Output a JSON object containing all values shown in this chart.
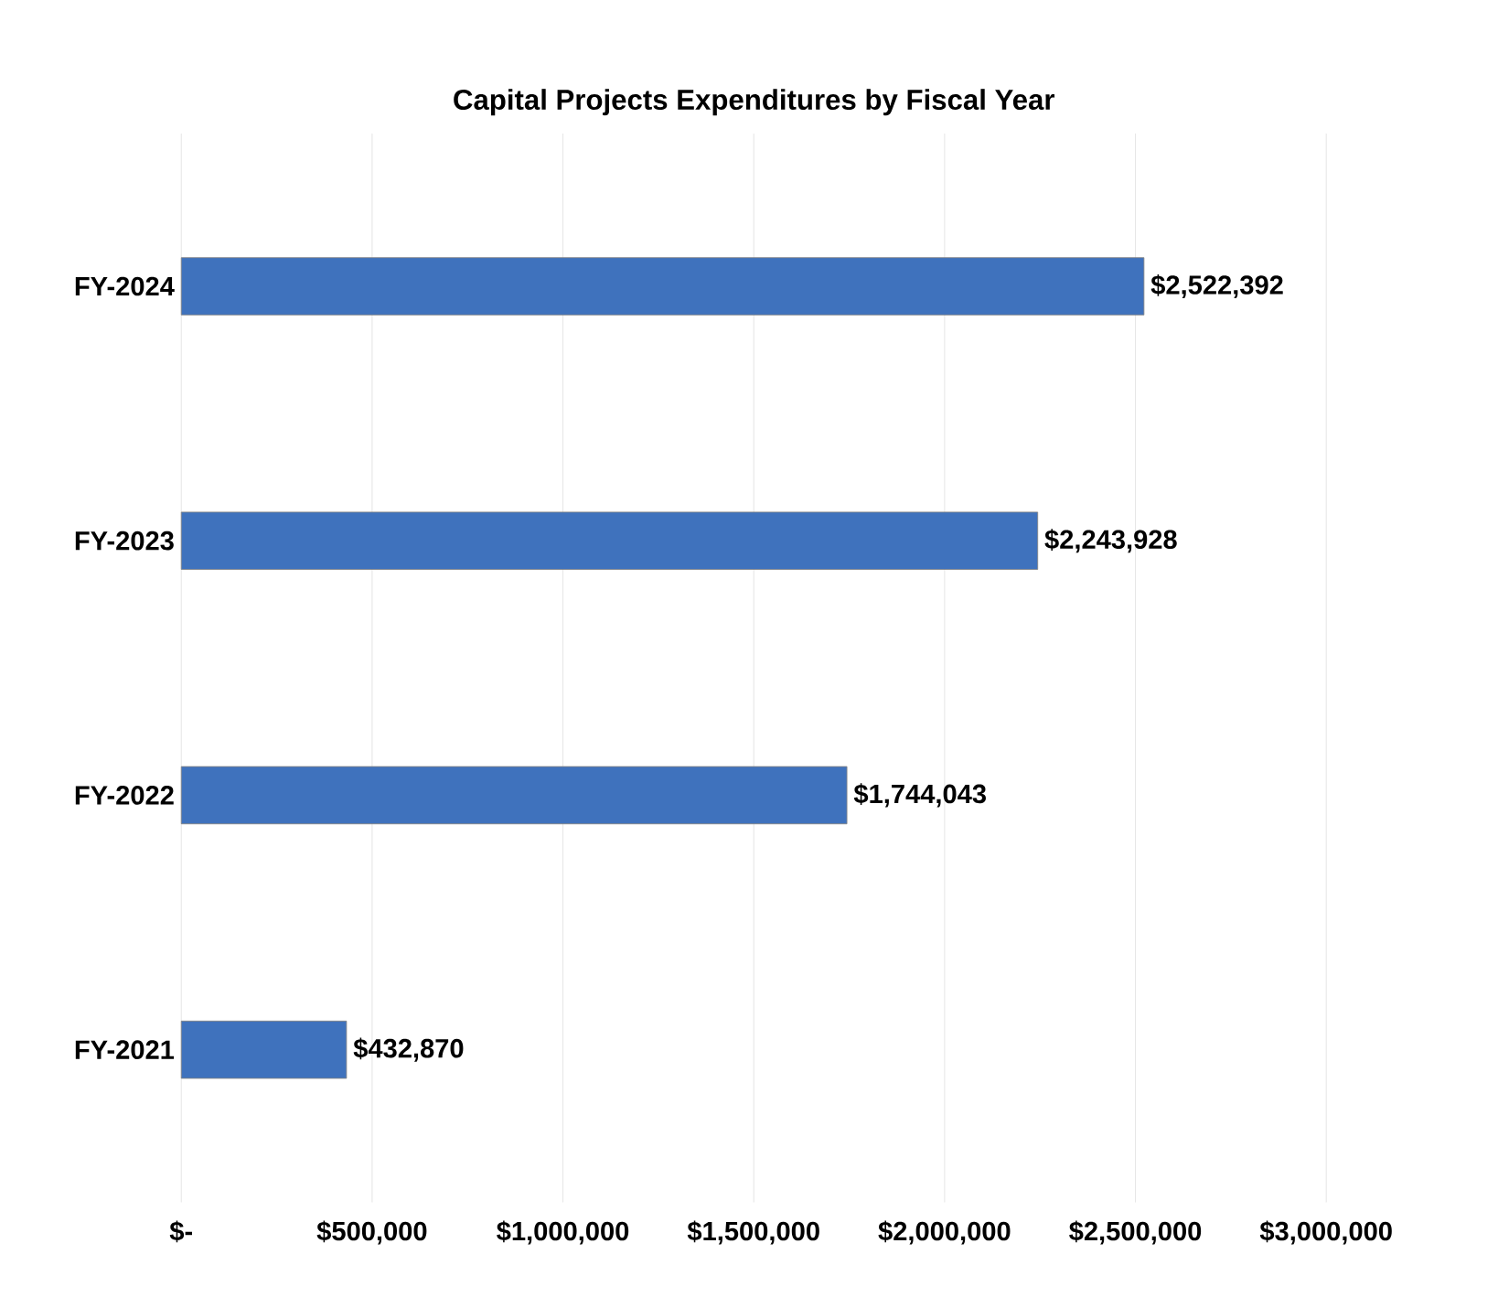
{
  "chart_data": {
    "type": "bar",
    "orientation": "horizontal",
    "title": "Capital Projects Expenditures by Fiscal Year",
    "categories": [
      "FY-2024",
      "FY-2023",
      "FY-2022",
      "FY-2021"
    ],
    "values": [
      2522392,
      2243928,
      1744043,
      432870
    ],
    "value_labels": [
      "$2,522,392",
      "$2,243,928",
      "$1,744,043",
      "$432,870"
    ],
    "color": "#3f72bd",
    "xlim": [
      0,
      3000000
    ],
    "xticks": [
      {
        "value": 0,
        "label": "$-"
      },
      {
        "value": 500000,
        "label": "$500,000"
      },
      {
        "value": 1000000,
        "label": "$1,000,000"
      },
      {
        "value": 1500000,
        "label": "$1,500,000"
      },
      {
        "value": 2000000,
        "label": "$2,000,000"
      },
      {
        "value": 2500000,
        "label": "$2,500,000"
      },
      {
        "value": 3000000,
        "label": "$3,000,000"
      }
    ],
    "grid": "x"
  }
}
